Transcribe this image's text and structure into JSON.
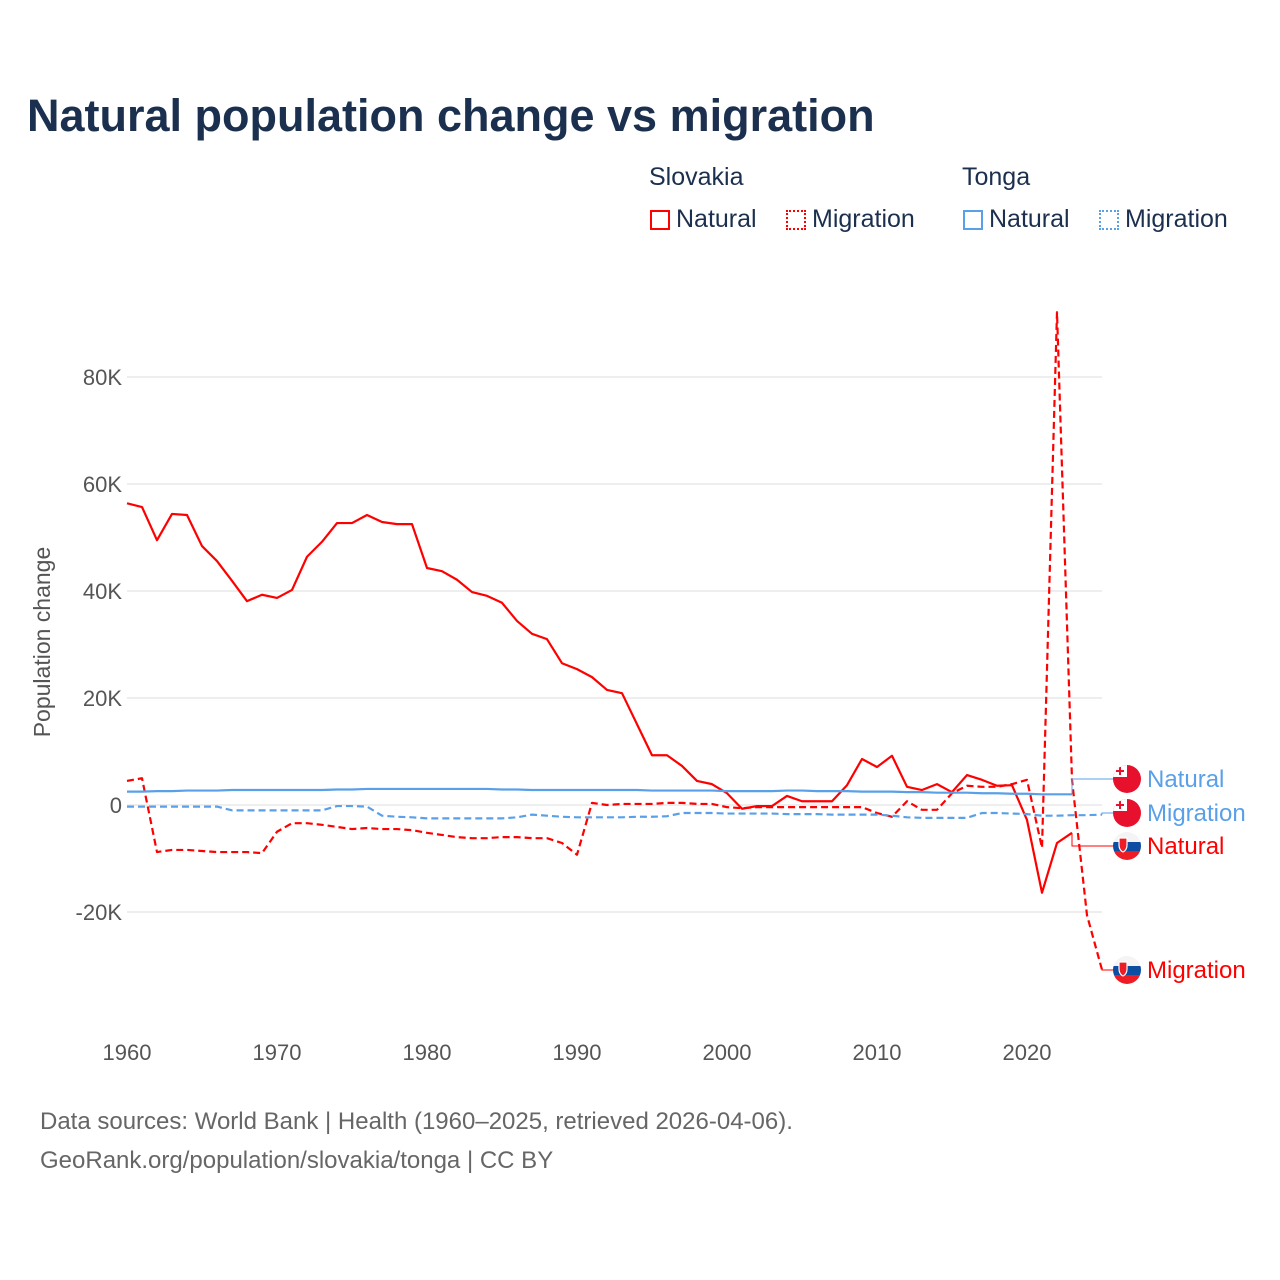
{
  "title": "Natural population change vs migration",
  "legend": {
    "groups": [
      {
        "name": "Slovakia",
        "color": "#ff0000",
        "items": [
          "Natural",
          "Migration"
        ]
      },
      {
        "name": "Tonga",
        "color": "#5aa0e8",
        "items": [
          "Natural",
          "Migration"
        ]
      }
    ]
  },
  "footer": {
    "line1": "Data sources: World Bank | Health (1960–2025, retrieved 2026-04-06).",
    "line2": "GeoRank.org/population/slovakia/tonga | CC BY"
  },
  "chart_data": {
    "type": "line",
    "title": "Natural population change vs migration",
    "xlabel": "",
    "ylabel": "Population change",
    "xlim": [
      1960,
      2025
    ],
    "ylim": [
      -35000,
      95000
    ],
    "x_ticks": [
      1960,
      1970,
      1980,
      1990,
      2000,
      2010,
      2020
    ],
    "y_ticks": [
      -20000,
      0,
      20000,
      40000,
      60000,
      80000
    ],
    "y_tick_labels": [
      "-20K",
      "0",
      "20K",
      "40K",
      "60K",
      "80K"
    ],
    "grid": true,
    "legend_position": "top-right",
    "series": [
      {
        "name": "Slovakia Natural",
        "country": "Slovakia",
        "kind": "Natural",
        "color": "#ff0000",
        "dash": false,
        "end_label": "Natural",
        "start_year": 1960,
        "values": [
          56400,
          55700,
          49500,
          54400,
          54200,
          48400,
          45600,
          41900,
          38100,
          39300,
          38700,
          40200,
          46400,
          49200,
          52700,
          52700,
          54200,
          52900,
          52500,
          52500,
          44300,
          43700,
          42100,
          39800,
          39100,
          37800,
          34400,
          32000,
          31000,
          26500,
          25400,
          23900,
          21500,
          20900,
          15100,
          9300,
          9300,
          7300,
          4500,
          3900,
          2200,
          -700,
          -200,
          -200,
          1700,
          700,
          700,
          700,
          3700,
          8600,
          7100,
          9200,
          3400,
          2800,
          3900,
          2400,
          5600,
          4700,
          3600,
          3700,
          -2800,
          -16400,
          -7100,
          -5200
        ]
      },
      {
        "name": "Slovakia Migration",
        "country": "Slovakia",
        "kind": "Migration",
        "color": "#ff0000",
        "dash": true,
        "end_label": "Migration",
        "start_year": 1960,
        "values": [
          4500,
          5000,
          -8800,
          -8400,
          -8400,
          -8600,
          -8800,
          -8800,
          -8800,
          -9000,
          -5000,
          -3400,
          -3400,
          -3700,
          -4100,
          -4500,
          -4300,
          -4500,
          -4500,
          -4700,
          -5200,
          -5600,
          -6000,
          -6200,
          -6200,
          -6000,
          -6000,
          -6200,
          -6200,
          -7100,
          -9300,
          400,
          0,
          200,
          200,
          200,
          400,
          400,
          200,
          200,
          -400,
          -600,
          -400,
          -400,
          -400,
          -400,
          -400,
          -400,
          -400,
          -400,
          -1500,
          -2200,
          700,
          -900,
          -900,
          2200,
          3600,
          3400,
          3400,
          3900,
          4700,
          -8000,
          92100,
          4700,
          -20600,
          -30800
        ]
      },
      {
        "name": "Tonga Natural",
        "country": "Tonga",
        "kind": "Natural",
        "color": "#5aa0e8",
        "dash": false,
        "end_label": "Natural",
        "start_year": 1960,
        "values": [
          2500,
          2500,
          2600,
          2600,
          2700,
          2700,
          2700,
          2800,
          2800,
          2800,
          2800,
          2800,
          2800,
          2800,
          2900,
          2900,
          3000,
          3000,
          3000,
          3000,
          3000,
          3000,
          3000,
          3000,
          3000,
          2900,
          2900,
          2800,
          2800,
          2800,
          2800,
          2800,
          2800,
          2800,
          2800,
          2700,
          2700,
          2700,
          2700,
          2700,
          2600,
          2600,
          2600,
          2600,
          2700,
          2700,
          2600,
          2600,
          2600,
          2500,
          2500,
          2500,
          2400,
          2400,
          2300,
          2300,
          2300,
          2200,
          2200,
          2100,
          2100,
          2000,
          2000,
          2000
        ]
      },
      {
        "name": "Tonga Migration",
        "country": "Tonga",
        "kind": "Migration",
        "color": "#5aa0e8",
        "dash": true,
        "end_label": "Migration",
        "start_year": 1960,
        "values": [
          -300,
          -300,
          -300,
          -300,
          -300,
          -300,
          -300,
          -1000,
          -1000,
          -1000,
          -1000,
          -1000,
          -1000,
          -1000,
          -200,
          -200,
          -300,
          -2000,
          -2200,
          -2300,
          -2500,
          -2500,
          -2500,
          -2500,
          -2500,
          -2500,
          -2300,
          -1800,
          -2000,
          -2200,
          -2300,
          -2300,
          -2300,
          -2300,
          -2200,
          -2200,
          -2100,
          -1500,
          -1500,
          -1500,
          -1600,
          -1600,
          -1600,
          -1600,
          -1700,
          -1700,
          -1700,
          -1800,
          -1800,
          -1800,
          -1800,
          -2000,
          -2300,
          -2400,
          -2400,
          -2400,
          -2400,
          -1500,
          -1500,
          -1600,
          -1700,
          -2000,
          -2000,
          -1900,
          -1900,
          -1800
        ]
      }
    ],
    "end_labels_order": [
      "Tonga Natural",
      "Tonga Migration",
      "Slovakia Natural",
      "Slovakia Migration"
    ]
  }
}
